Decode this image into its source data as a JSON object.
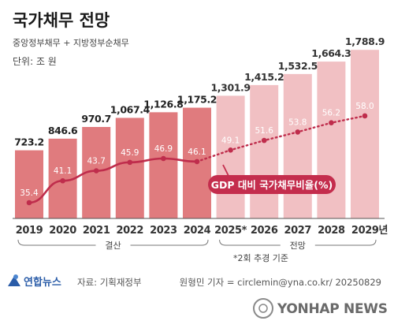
{
  "title": "국가채무 전망",
  "subtitle": "중앙정부채무 + 지방정부순채무",
  "unit": "단위: 조 원",
  "chart_data": {
    "type": "bar",
    "categories": [
      "2019",
      "2020",
      "2021",
      "2022",
      "2023",
      "2024",
      "2025*",
      "2026",
      "2027",
      "2028",
      "2029년"
    ],
    "values": [
      723.2,
      846.6,
      970.7,
      1067.4,
      1126.8,
      1175.2,
      1301.9,
      1415.2,
      1532.5,
      1664.3,
      1788.9
    ],
    "value_labels": [
      "723.2",
      "846.6",
      "970.7",
      "1,067.4",
      "1,126.8",
      "1,175.2",
      "1,301.9",
      "1,415.2",
      "1,532.5",
      "1,664.3",
      "1,788.9"
    ],
    "ratio_series": {
      "name": "GDP 대비 국가채무비율(%)",
      "values": [
        35.4,
        41.1,
        43.7,
        45.9,
        46.9,
        46.1,
        49.1,
        51.6,
        53.8,
        56.2,
        58.0
      ],
      "labels": [
        "35.4",
        "41.1",
        "43.7",
        "45.9",
        "46.9",
        "46.1",
        "49.1",
        "51.6",
        "53.8",
        "56.2",
        "58.0"
      ]
    },
    "groups": [
      {
        "label": "결산",
        "from": 0,
        "to": 5
      },
      {
        "label": "전망",
        "from": 6,
        "to": 10
      }
    ],
    "actual_count": 6,
    "colors": {
      "actual": "#e07b7e",
      "forecast": "#f1c0c3",
      "line": "#bf2d4c",
      "callout": "#c42d4d"
    }
  },
  "note": "*2회 추경 기준",
  "source": "자료: 기획재정부",
  "logo": "연합뉴스",
  "byline": "원형민 기자 = circlemin@yna.co.kr/ 20250829",
  "watermark": "YONHAP NEWS"
}
